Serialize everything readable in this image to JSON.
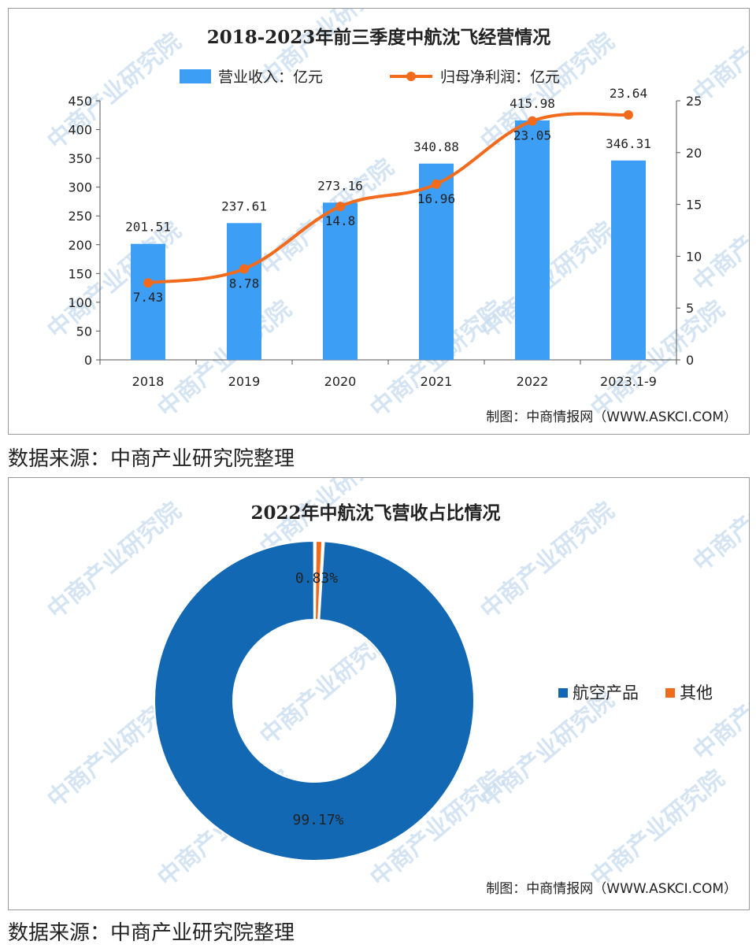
{
  "colors": {
    "bar": "#3d9ef5",
    "line": "#f26b1d",
    "donut_main": "#1268b3",
    "donut_other": "#f26b1d",
    "axis": "#555555",
    "watermark": "#c7dcee"
  },
  "watermark_text": "中商产业研究院",
  "source_text": "数据来源：中商产业研究院整理",
  "chart_data": [
    {
      "type": "bar+line",
      "title": "2018-2023年前三季度中航沈飞经营情况",
      "categories": [
        "2018",
        "2019",
        "2020",
        "2021",
        "2022",
        "2023.1-9"
      ],
      "series": [
        {
          "name": "营业收入：亿元",
          "type": "bar",
          "axis": "left",
          "values": [
            201.51,
            237.61,
            273.16,
            340.88,
            415.98,
            346.31
          ],
          "labels": [
            "201.51",
            "237.61",
            "273.16",
            "340.88",
            "415.98",
            "346.31"
          ]
        },
        {
          "name": "归母净利润：亿元",
          "type": "line",
          "axis": "right",
          "values": [
            7.43,
            8.78,
            14.8,
            16.96,
            23.05,
            23.64
          ],
          "labels": [
            "7.43",
            "8.78",
            "14.8",
            "16.96",
            "23.05",
            "23.64"
          ]
        }
      ],
      "y_left": {
        "range": [
          0,
          450
        ],
        "ticks": [
          "0",
          "50",
          "100",
          "150",
          "200",
          "250",
          "300",
          "350",
          "400",
          "450"
        ]
      },
      "y_right": {
        "range": [
          0,
          25
        ],
        "ticks": [
          "0",
          "5",
          "10",
          "15",
          "20",
          "25"
        ]
      },
      "legend": "top",
      "grid": false,
      "credit": "制图：中商情报网（WWW.ASKCI.COM）"
    },
    {
      "type": "pie",
      "donut": true,
      "title": "2022年中航沈飞营收占比情况",
      "slices": [
        {
          "name": "航空产品",
          "value": 99.17,
          "label": "99.17%"
        },
        {
          "name": "其他",
          "value": 0.83,
          "label": "0.83%"
        }
      ],
      "legend": "right",
      "credit": "制图：中商情报网（WWW.ASKCI.COM）"
    }
  ]
}
